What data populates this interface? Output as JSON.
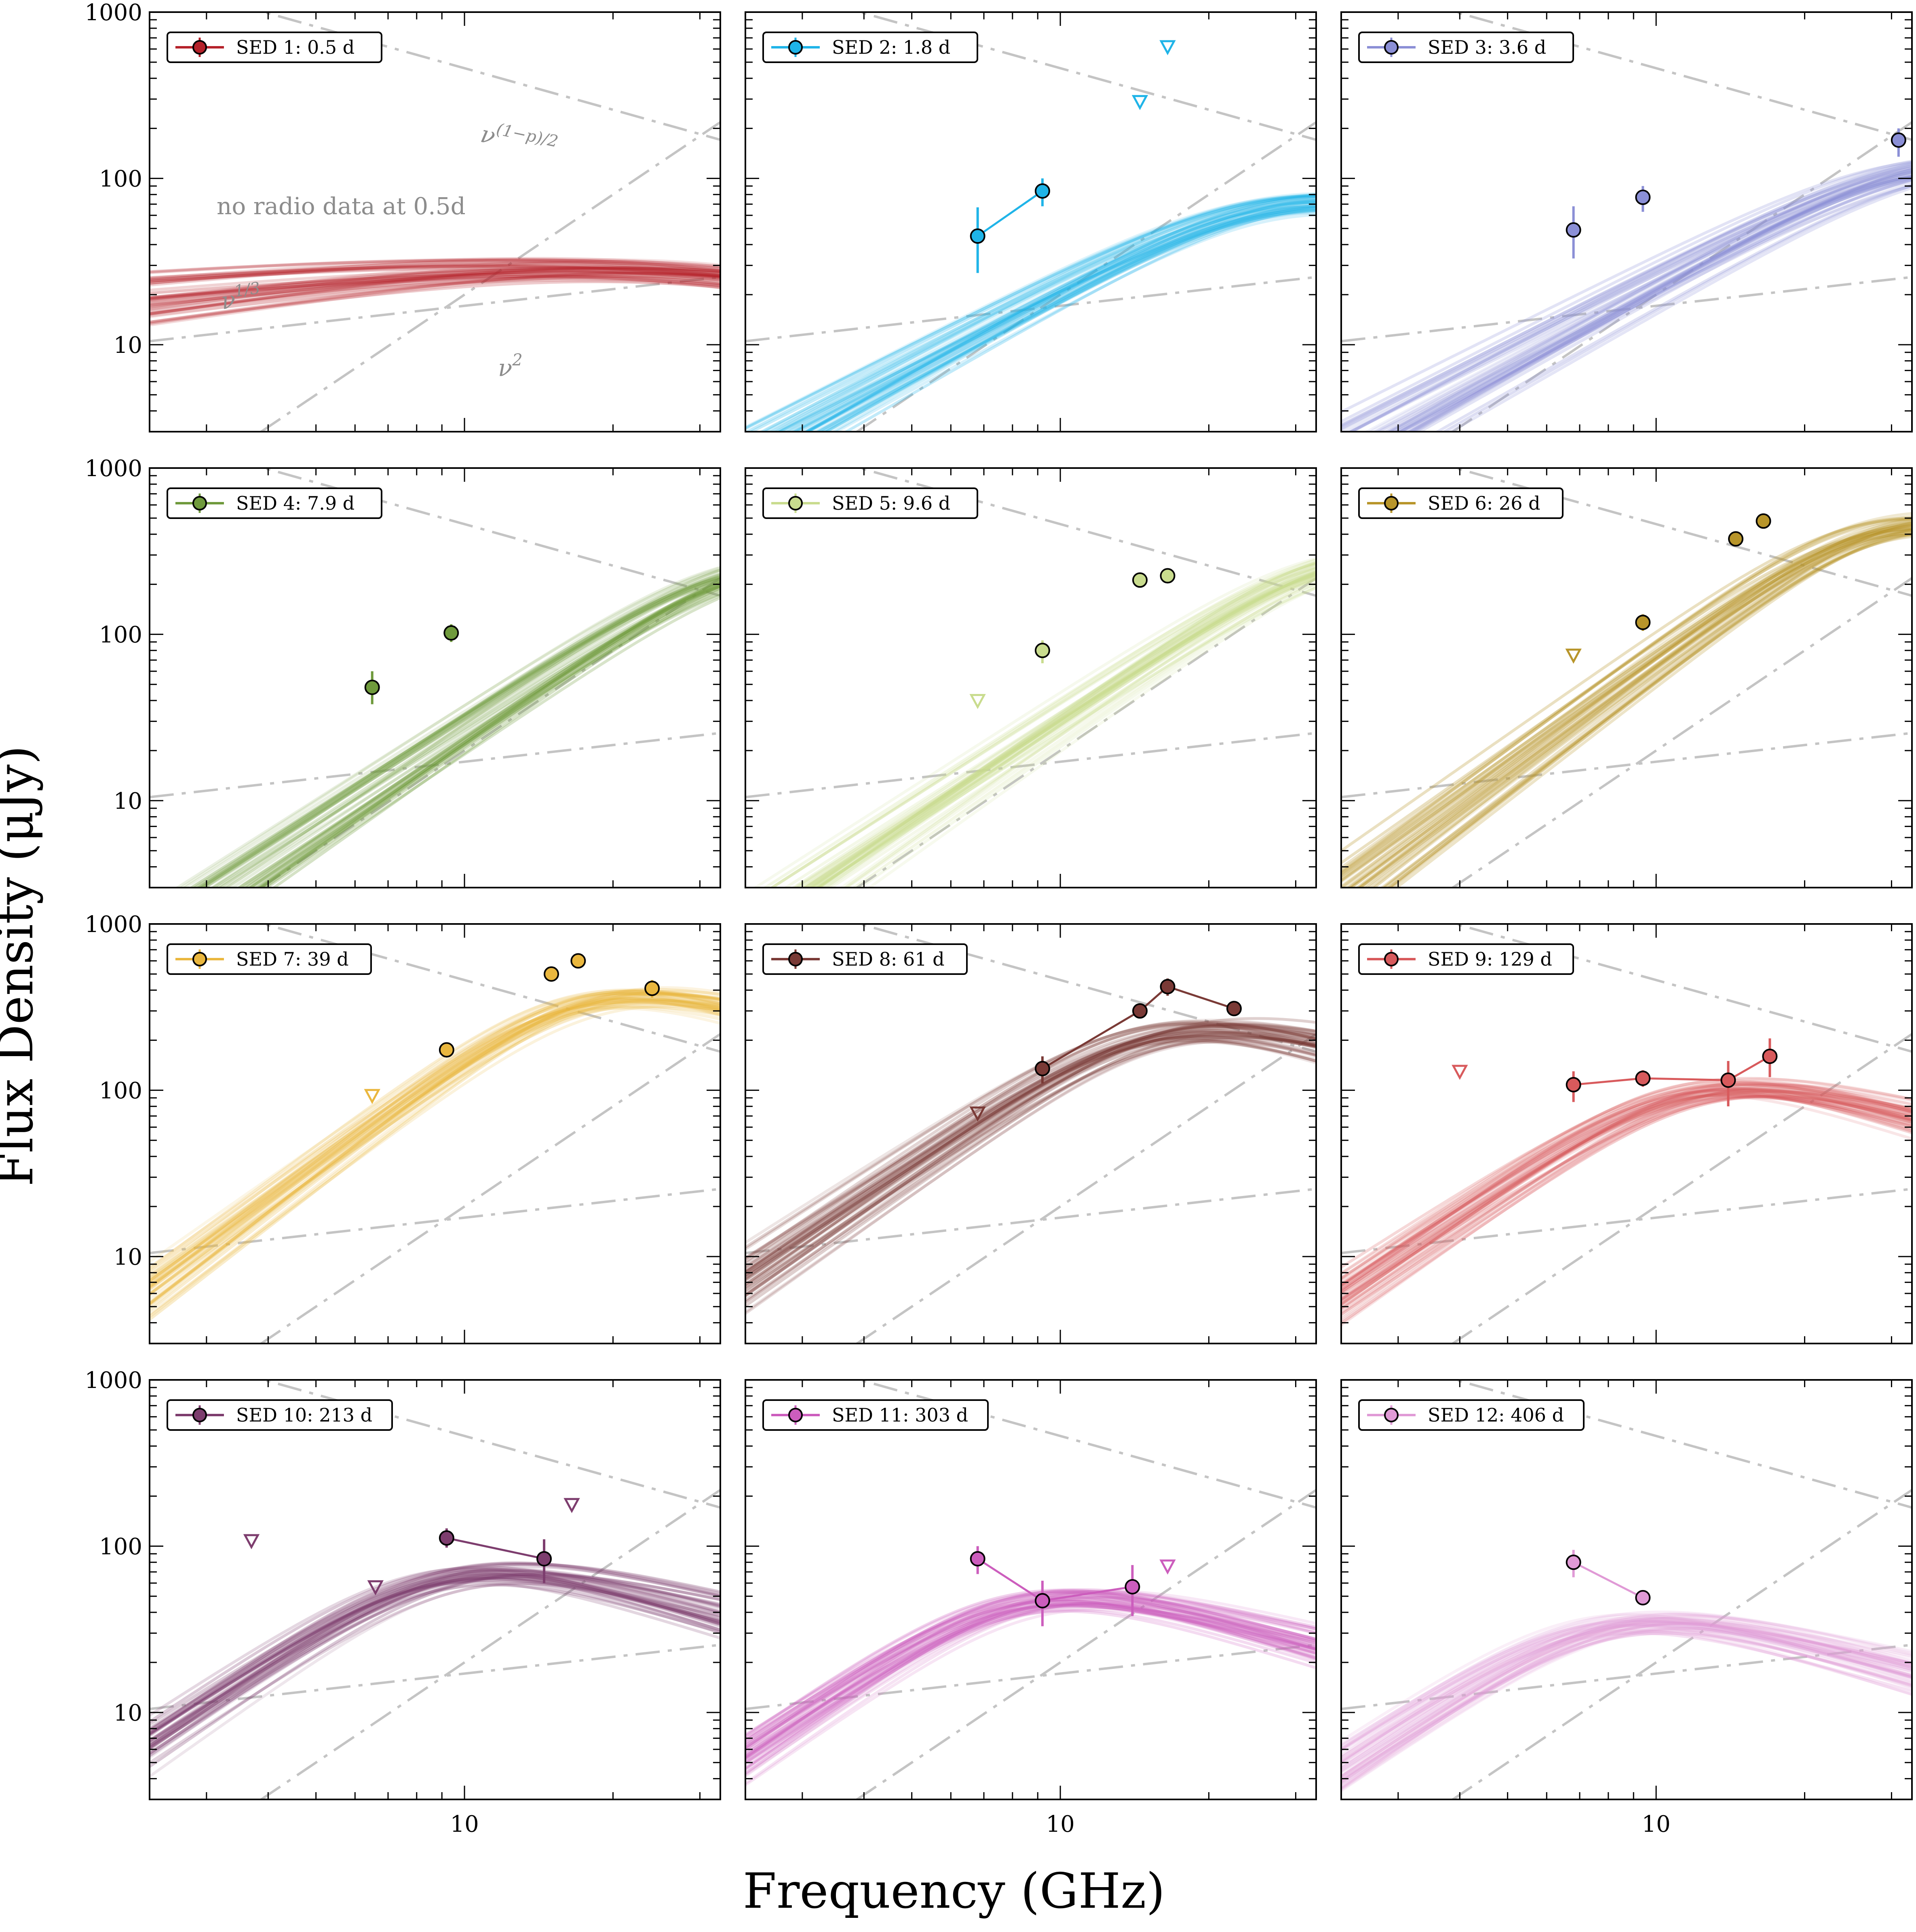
{
  "chart_data": {
    "type": "scatter",
    "xlabel": "Frequency (GHz)",
    "ylabel": "Flux Density (μJy)",
    "xscale": "log",
    "yscale": "log",
    "xlim": [
      2.3,
      33
    ],
    "ylim": [
      3,
      1000
    ],
    "x_tick_labels": [
      {
        "value": 10,
        "label": "10"
      }
    ],
    "y_tick_labels": [
      {
        "value": 10,
        "label": "10"
      },
      {
        "value": 100,
        "label": "100"
      },
      {
        "value": 1000,
        "label": "1000"
      }
    ],
    "grid": false,
    "legend_position": "top-left",
    "reference_lines": [
      {
        "name": "nu^(1/3)",
        "slope": 0.3333,
        "x0": 2.3,
        "y0": 10.5
      },
      {
        "name": "nu^2",
        "slope": 2.0,
        "x0": 10,
        "y0": 20
      },
      {
        "name": "nu^((1-p)/2)",
        "slope": -0.83,
        "x0": 10,
        "y0": 460
      }
    ],
    "annotations_panel1": [
      {
        "text": "no radio data at 0.5d"
      },
      {
        "text": "ν^{1/3}",
        "base": "ν",
        "exp": "1/3"
      },
      {
        "text": "ν^2",
        "base": "ν",
        "exp": "2"
      },
      {
        "text": "ν^{(1−p)/2}",
        "base": "ν",
        "exp": "(1−p)/2"
      }
    ],
    "panels": [
      {
        "label": "SED 1: 0.5 d",
        "color": "#b5222a",
        "model": {
          "nu_p": 30,
          "F_p": 45,
          "thick_slope": 0.33,
          "thin_slope": -0.8
        },
        "points": [],
        "upper_limits": [],
        "connect": false
      },
      {
        "label": "SED 2: 1.8 d",
        "color": "#1fb4e8",
        "model": {
          "nu_p": 28,
          "F_p": 115,
          "thick_slope": 1.6,
          "thin_slope": -0.8
        },
        "points": [
          {
            "x": 6.8,
            "y": 45,
            "lo": 27,
            "hi": 67
          },
          {
            "x": 9.2,
            "y": 84,
            "lo": 68,
            "hi": 100
          }
        ],
        "upper_limits": [
          {
            "x": 14.5,
            "y": 290
          },
          {
            "x": 16.5,
            "y": 620
          }
        ],
        "connect": true
      },
      {
        "label": "SED 3: 3.6 d",
        "color": "#8b8fd6",
        "model": {
          "nu_p": 38,
          "F_p": 200,
          "thick_slope": 1.6,
          "thin_slope": -0.8
        },
        "points": [
          {
            "x": 6.8,
            "y": 49,
            "lo": 33,
            "hi": 68
          },
          {
            "x": 9.4,
            "y": 77,
            "lo": 63,
            "hi": 90
          },
          {
            "x": 31,
            "y": 170,
            "lo": 135,
            "hi": 200
          }
        ],
        "upper_limits": [],
        "connect": false
      },
      {
        "label": "SED 4: 7.9 d",
        "color": "#6f9a3c",
        "model": {
          "nu_p": 40,
          "F_p": 420,
          "thick_slope": 2.0,
          "thin_slope": -0.8
        },
        "points": [
          {
            "x": 6.5,
            "y": 48,
            "lo": 38,
            "hi": 60
          },
          {
            "x": 9.4,
            "y": 102,
            "lo": 90,
            "hi": 115
          }
        ],
        "upper_limits": [],
        "connect": false
      },
      {
        "label": "SED 5: 9.6 d",
        "color": "#c9dc8e",
        "model": {
          "nu_p": 40,
          "F_p": 470,
          "thick_slope": 2.0,
          "thin_slope": -0.8
        },
        "points": [
          {
            "x": 9.2,
            "y": 80,
            "lo": 67,
            "hi": 92
          },
          {
            "x": 14.5,
            "y": 212,
            "lo": 195,
            "hi": 230
          },
          {
            "x": 16.5,
            "y": 225,
            "lo": 205,
            "hi": 245
          }
        ],
        "upper_limits": [
          {
            "x": 6.8,
            "y": 40
          }
        ],
        "connect": false
      },
      {
        "label": "SED 6: 26 d",
        "color": "#b8952a",
        "model": {
          "nu_p": 29,
          "F_p": 710,
          "thick_slope": 2.2,
          "thin_slope": -0.8
        },
        "points": [
          {
            "x": 9.4,
            "y": 118,
            "lo": 105,
            "hi": 132
          },
          {
            "x": 14.5,
            "y": 375,
            "lo": 350,
            "hi": 400
          },
          {
            "x": 16.5,
            "y": 480,
            "lo": 455,
            "hi": 505
          }
        ],
        "upper_limits": [
          {
            "x": 6.8,
            "y": 75
          }
        ],
        "connect": false
      },
      {
        "label": "SED 7: 39 d",
        "color": "#eab73e",
        "model": {
          "nu_p": 18,
          "F_p": 560,
          "thick_slope": 2.2,
          "thin_slope": -0.85
        },
        "points": [
          {
            "x": 9.2,
            "y": 175,
            "lo": 160,
            "hi": 190
          },
          {
            "x": 15,
            "y": 500,
            "lo": 470,
            "hi": 530
          },
          {
            "x": 17,
            "y": 600,
            "lo": 570,
            "hi": 630
          },
          {
            "x": 24,
            "y": 410,
            "lo": 360,
            "hi": 460
          }
        ],
        "upper_limits": [
          {
            "x": 6.5,
            "y": 93
          }
        ],
        "connect": false
      },
      {
        "label": "SED 8: 61 d",
        "color": "#7a3a36",
        "model": {
          "nu_p": 16,
          "F_p": 360,
          "thick_slope": 2.0,
          "thin_slope": -0.8
        },
        "points": [
          {
            "x": 9.2,
            "y": 135,
            "lo": 110,
            "hi": 160
          },
          {
            "x": 14.5,
            "y": 300,
            "lo": 280,
            "hi": 320
          },
          {
            "x": 16.5,
            "y": 420,
            "lo": 370,
            "hi": 470
          },
          {
            "x": 22.5,
            "y": 310,
            "lo": 280,
            "hi": 340
          }
        ],
        "upper_limits": [
          {
            "x": 6.8,
            "y": 73
          }
        ],
        "connect": true
      },
      {
        "label": "SED 9: 129 d",
        "color": "#d85a5c",
        "model": {
          "nu_p": 12,
          "F_p": 160,
          "thick_slope": 2.0,
          "thin_slope": -0.8
        },
        "points": [
          {
            "x": 6.8,
            "y": 108,
            "lo": 85,
            "hi": 130
          },
          {
            "x": 9.4,
            "y": 118,
            "lo": 105,
            "hi": 132
          },
          {
            "x": 14,
            "y": 115,
            "lo": 80,
            "hi": 150
          },
          {
            "x": 17,
            "y": 160,
            "lo": 120,
            "hi": 205
          }
        ],
        "upper_limits": [
          {
            "x": 4,
            "y": 130
          }
        ],
        "connect": true
      },
      {
        "label": "SED 10: 213 d",
        "color": "#7d3d6e",
        "model": {
          "nu_p": 9.3,
          "F_p": 108,
          "thick_slope": 2.0,
          "thin_slope": -0.8
        },
        "points": [
          {
            "x": 9.2,
            "y": 112,
            "lo": 98,
            "hi": 128
          },
          {
            "x": 14.5,
            "y": 84,
            "lo": 60,
            "hi": 110
          }
        ],
        "upper_limits": [
          {
            "x": 3.7,
            "y": 108
          },
          {
            "x": 6.6,
            "y": 57
          },
          {
            "x": 16.5,
            "y": 178
          }
        ],
        "connect": true
      },
      {
        "label": "SED 11: 303 d",
        "color": "#cc5dbd",
        "model": {
          "nu_p": 8.5,
          "F_p": 75,
          "thick_slope": 2.0,
          "thin_slope": -0.8
        },
        "points": [
          {
            "x": 6.8,
            "y": 84,
            "lo": 68,
            "hi": 100
          },
          {
            "x": 9.2,
            "y": 47,
            "lo": 33,
            "hi": 62
          },
          {
            "x": 14,
            "y": 57,
            "lo": 38,
            "hi": 77
          }
        ],
        "upper_limits": [
          {
            "x": 16.5,
            "y": 76
          }
        ],
        "connect": true
      },
      {
        "label": "SED 12: 406 d",
        "color": "#e09ad6",
        "model": {
          "nu_p": 8,
          "F_p": 55,
          "thick_slope": 2.0,
          "thin_slope": -0.8
        },
        "points": [
          {
            "x": 6.8,
            "y": 80,
            "lo": 65,
            "hi": 95
          },
          {
            "x": 9.4,
            "y": 49,
            "lo": 44,
            "hi": 54
          }
        ],
        "upper_limits": [],
        "connect": true
      }
    ]
  },
  "colors": {
    "reference": "#c4c4c4",
    "frame": "#000000",
    "annotation": "#8c8c8c"
  }
}
